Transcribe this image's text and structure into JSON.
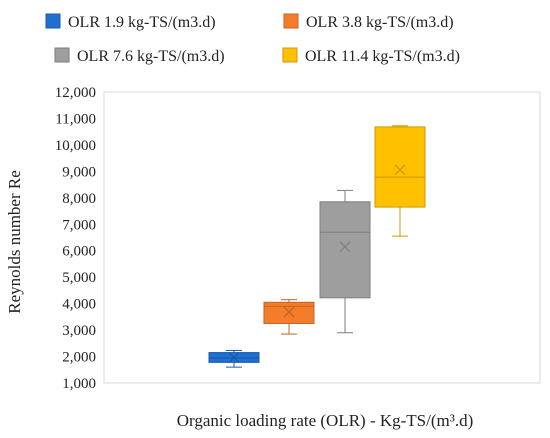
{
  "chart_data": {
    "type": "box",
    "xlabel": "Organic loading rate (OLR) - Kg-TS/(m³.d)",
    "ylabel": "Reynolds number Re",
    "ylim": [
      1000,
      12000
    ],
    "ytick_step": 1000,
    "ytick_labels": [
      "1,000",
      "2,000",
      "3,000",
      "4,000",
      "5,000",
      "6,000",
      "7,000",
      "8,000",
      "9,000",
      "10,000",
      "11,000",
      "12,000"
    ],
    "grid": false,
    "legend_position": "top",
    "series": [
      {
        "name": "OLR 1.9 kg-TS/(m3.d)",
        "color": "#1f6fd1",
        "min": 1600,
        "q1": 1780,
        "median": 1950,
        "q3": 2150,
        "max": 2230,
        "mean": 1960
      },
      {
        "name": "OLR 3.8 kg-TS/(m3.d)",
        "color": "#f47c2a",
        "min": 2850,
        "q1": 3250,
        "median": 3900,
        "q3": 4050,
        "max": 4150,
        "mean": 3680
      },
      {
        "name": "OLR 7.6 kg-TS/(m3.d)",
        "color": "#9e9e9e",
        "min": 2900,
        "q1": 4220,
        "median": 6700,
        "q3": 7850,
        "max": 8280,
        "mean": 6150
      },
      {
        "name": "OLR 11.4 kg-TS/(m3.d)",
        "color": "#ffc000",
        "min": 6550,
        "q1": 7650,
        "median": 8780,
        "q3": 10680,
        "max": 10720,
        "mean": 9060
      }
    ]
  }
}
